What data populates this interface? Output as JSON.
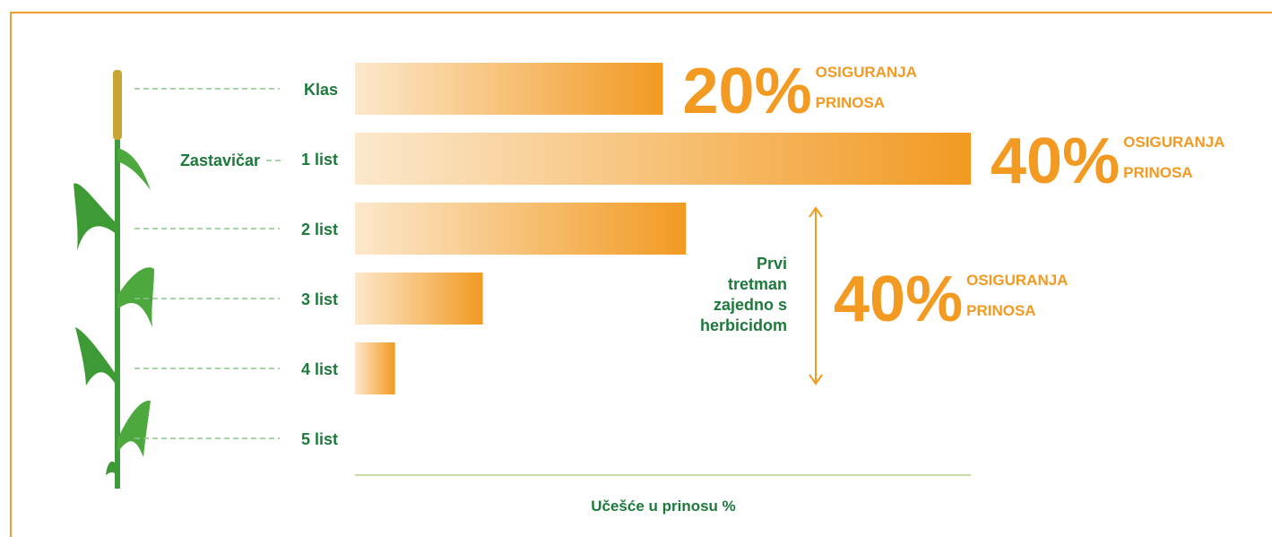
{
  "chart_data": {
    "type": "bar",
    "orientation": "horizontal",
    "categories": [
      "Klas",
      "1 list",
      "2 list",
      "3 list",
      "4 list",
      "5 list"
    ],
    "values": [
      20,
      40,
      21.5,
      8.3,
      2.6,
      0
    ],
    "value_labels": [
      "20%",
      "40%",
      null,
      null,
      null,
      null
    ],
    "value_caption": [
      "OSIGURANJA",
      "PRINOSA"
    ],
    "side_label": "Zastavičar",
    "group_annotation": {
      "lines": [
        "Prvi",
        "tretman",
        "zajedno s",
        "herbicidom"
      ],
      "value_label": "40%"
    },
    "xlabel": "Učešće u prinosu %",
    "xlim": [
      0,
      40
    ],
    "color_start": "#fce8cc",
    "color": "#f29a22"
  }
}
